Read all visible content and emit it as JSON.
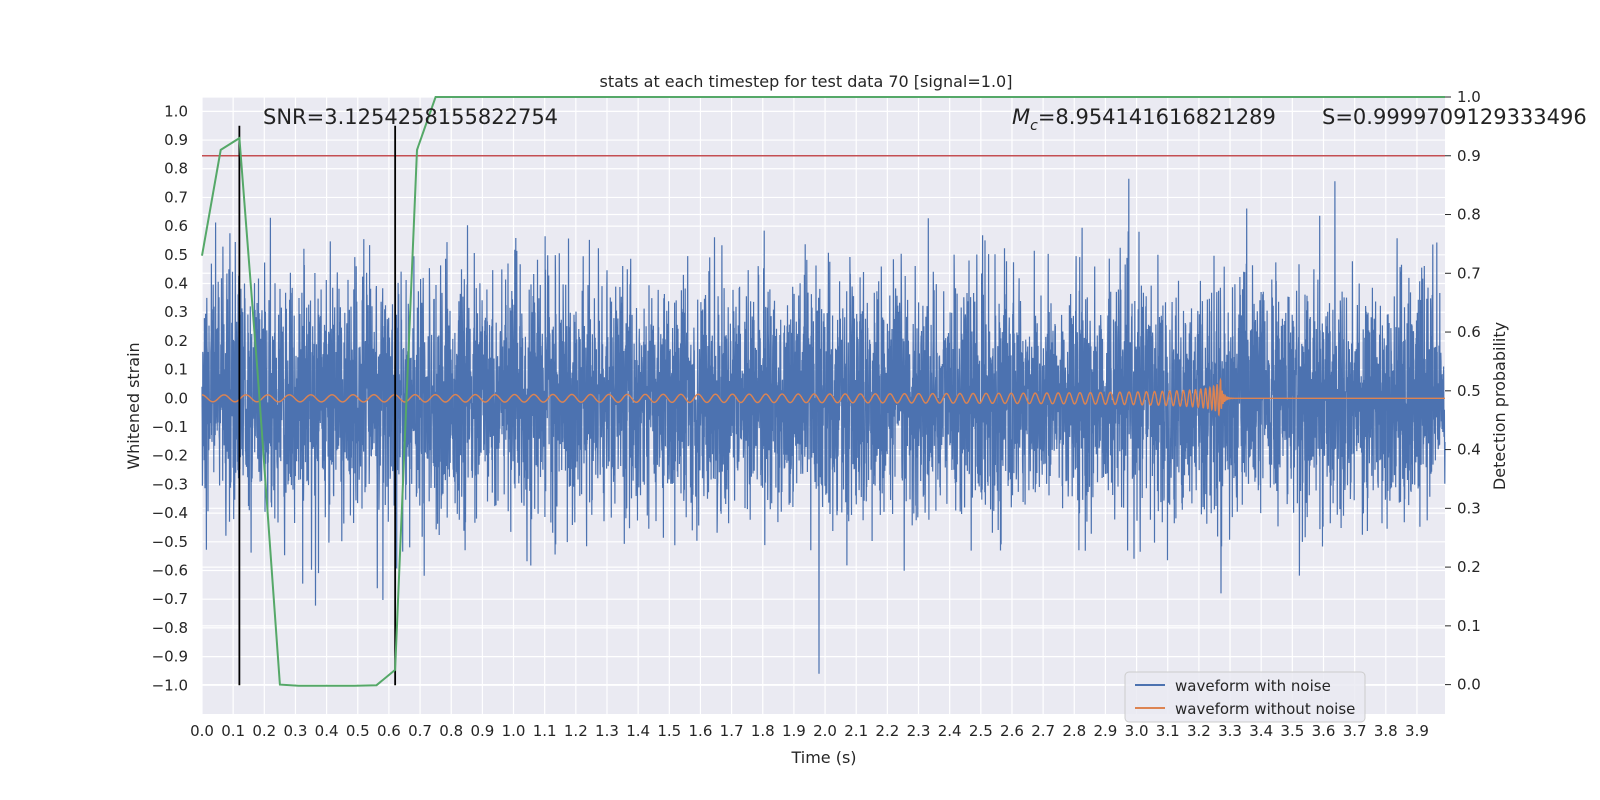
{
  "chart_data": {
    "type": "line",
    "title": "stats at each timestep for test data 70 [signal=1.0]",
    "xlabel": "Time (s)",
    "ylabel": "Whitened strain",
    "y2label": "Detection probability",
    "xlim": [
      0.0,
      3.99
    ],
    "ylim": [
      -1.1,
      1.05
    ],
    "y2lim": [
      -0.05,
      1.0
    ],
    "grid": true,
    "x_ticks": [
      "0.0",
      "0.1",
      "0.2",
      "0.3",
      "0.4",
      "0.5",
      "0.6",
      "0.7",
      "0.8",
      "0.9",
      "1.0",
      "1.1",
      "1.2",
      "1.3",
      "1.4",
      "1.5",
      "1.6",
      "1.7",
      "1.8",
      "1.9",
      "2.0",
      "2.1",
      "2.2",
      "2.3",
      "2.4",
      "2.5",
      "2.6",
      "2.7",
      "2.8",
      "2.9",
      "3.0",
      "3.1",
      "3.2",
      "3.3",
      "3.4",
      "3.5",
      "3.6",
      "3.7",
      "3.8",
      "3.9"
    ],
    "y_ticks": [
      "1.0",
      "0.9",
      "0.8",
      "0.7",
      "0.6",
      "0.5",
      "0.4",
      "0.3",
      "0.2",
      "0.1",
      "0.0",
      "−0.1",
      "−0.2",
      "−0.3",
      "−0.4",
      "−0.5",
      "−0.6",
      "−0.7",
      "−0.8",
      "−0.9",
      "−1.0"
    ],
    "y2_ticks": [
      "1.0",
      "0.9",
      "0.8",
      "0.7",
      "0.6",
      "0.5",
      "0.4",
      "0.3",
      "0.2",
      "0.1",
      "0.0"
    ],
    "annotations": {
      "snr": "SNR=3.1254258155822754",
      "mc_symbol": "M",
      "mc_sub": "c",
      "mc_value": "=8.954141616821289",
      "s": "S=0.9999709129333496"
    },
    "series": [
      {
        "name": "waveform with noise",
        "color": "#4c72b0",
        "axis": "left",
        "note": "whitened noisy strain, peaks roughly within ±0.95"
      },
      {
        "name": "waveform without noise",
        "color": "#dd8452",
        "axis": "left",
        "chirp": {
          "start": 0.0,
          "merger": 3.27,
          "amp_start": 0.012,
          "amp_peak": 0.08,
          "f_start": 14,
          "f_merger": 90
        }
      },
      {
        "name": "detection probability",
        "color": "#55a868",
        "axis": "right",
        "x": [
          0.0,
          0.06,
          0.12,
          0.18,
          0.25,
          0.31,
          0.37,
          0.43,
          0.49,
          0.56,
          0.62,
          0.69,
          0.75,
          0.81,
          3.99
        ],
        "values": [
          0.73,
          0.91,
          0.93,
          0.52,
          0.0,
          -0.002,
          -0.002,
          -0.002,
          -0.002,
          -0.001,
          0.025,
          0.91,
          1.0,
          1.0,
          1.0
        ]
      }
    ],
    "threshold": {
      "axis": "right",
      "value": 0.9,
      "color": "#c44e52"
    },
    "vlines": {
      "x": [
        0.12,
        0.62
      ],
      "ymin": -1.0,
      "ymax": 0.95,
      "color": "#000000"
    },
    "legend": {
      "position": "bottom-right",
      "entries": [
        "waveform with noise",
        "waveform without noise"
      ]
    }
  }
}
